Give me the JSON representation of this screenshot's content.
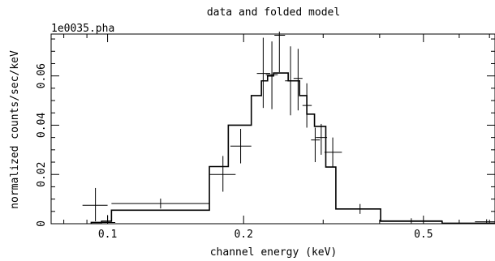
{
  "chart_data": {
    "type": "line",
    "title": "data and folded model",
    "subtitle": "1e0035.pha",
    "xlabel": "channel energy (keV)",
    "ylabel": "normalized counts/sec/keV",
    "xscale": "log",
    "xlim": [
      0.075,
      0.72
    ],
    "ylim": [
      0,
      0.077
    ],
    "xticks": [
      0.1,
      0.2,
      0.5
    ],
    "xtick_labels": [
      "0.1",
      "0.2",
      "0.5"
    ],
    "yticks": [
      0,
      0.02,
      0.04,
      0.06
    ],
    "ytick_labels": [
      "0",
      "0.02",
      "0.04",
      "0.06"
    ],
    "grid": false,
    "series": [
      {
        "kind": "data",
        "points": [
          {
            "x": 0.094,
            "xlo": 0.088,
            "xhi": 0.1,
            "y": 0.0075,
            "ylo": 0.001,
            "yhi": 0.0145
          },
          {
            "x": 0.1,
            "xlo": 0.097,
            "xhi": 0.104,
            "y": 0.0005,
            "ylo": 0.0,
            "yhi": 0.0035
          },
          {
            "x": 0.131,
            "xlo": 0.102,
            "xhi": 0.168,
            "y": 0.0082,
            "ylo": 0.0062,
            "yhi": 0.0102
          },
          {
            "x": 0.18,
            "xlo": 0.168,
            "xhi": 0.192,
            "y": 0.02,
            "ylo": 0.013,
            "yhi": 0.0275
          },
          {
            "x": 0.197,
            "xlo": 0.187,
            "xhi": 0.208,
            "y": 0.0315,
            "ylo": 0.0245,
            "yhi": 0.0385
          },
          {
            "x": 0.221,
            "xlo": 0.214,
            "xhi": 0.229,
            "y": 0.061,
            "ylo": 0.047,
            "yhi": 0.0755
          },
          {
            "x": 0.231,
            "xlo": 0.224,
            "xhi": 0.238,
            "y": 0.0605,
            "ylo": 0.0465,
            "yhi": 0.074
          },
          {
            "x": 0.24,
            "xlo": 0.234,
            "xhi": 0.247,
            "y": 0.0765,
            "ylo": 0.0615,
            "yhi": 0.078
          },
          {
            "x": 0.254,
            "xlo": 0.247,
            "xhi": 0.261,
            "y": 0.058,
            "ylo": 0.044,
            "yhi": 0.072
          },
          {
            "x": 0.264,
            "xlo": 0.258,
            "xhi": 0.27,
            "y": 0.059,
            "ylo": 0.046,
            "yhi": 0.071
          },
          {
            "x": 0.276,
            "xlo": 0.27,
            "xhi": 0.283,
            "y": 0.048,
            "ylo": 0.039,
            "yhi": 0.057
          },
          {
            "x": 0.288,
            "xlo": 0.282,
            "xhi": 0.295,
            "y": 0.034,
            "ylo": 0.025,
            "yhi": 0.039
          },
          {
            "x": 0.297,
            "xlo": 0.289,
            "xhi": 0.306,
            "y": 0.035,
            "ylo": 0.028,
            "yhi": 0.0405
          },
          {
            "x": 0.315,
            "xlo": 0.302,
            "xhi": 0.33,
            "y": 0.029,
            "ylo": 0.023,
            "yhi": 0.035
          },
          {
            "x": 0.362,
            "xlo": 0.337,
            "xhi": 0.392,
            "y": 0.006,
            "ylo": 0.004,
            "yhi": 0.008
          },
          {
            "x": 0.47,
            "xlo": 0.4,
            "xhi": 0.55,
            "y": 0.0012,
            "ylo": 0.0002,
            "yhi": 0.0022
          },
          {
            "x": 0.69,
            "xlo": 0.65,
            "xhi": 0.72,
            "y": 0.0008,
            "ylo": 0.0,
            "yhi": 0.0018
          }
        ]
      },
      {
        "kind": "model",
        "steps": [
          {
            "x0": 0.092,
            "x1": 0.097,
            "y": 0.0005
          },
          {
            "x0": 0.097,
            "x1": 0.102,
            "y": 0.001
          },
          {
            "x0": 0.102,
            "x1": 0.168,
            "y": 0.0055
          },
          {
            "x0": 0.168,
            "x1": 0.185,
            "y": 0.0232
          },
          {
            "x0": 0.185,
            "x1": 0.208,
            "y": 0.04
          },
          {
            "x0": 0.208,
            "x1": 0.219,
            "y": 0.052
          },
          {
            "x0": 0.219,
            "x1": 0.226,
            "y": 0.058
          },
          {
            "x0": 0.226,
            "x1": 0.233,
            "y": 0.06
          },
          {
            "x0": 0.233,
            "x1": 0.251,
            "y": 0.0612
          },
          {
            "x0": 0.251,
            "x1": 0.266,
            "y": 0.058
          },
          {
            "x0": 0.266,
            "x1": 0.276,
            "y": 0.052
          },
          {
            "x0": 0.276,
            "x1": 0.287,
            "y": 0.0445
          },
          {
            "x0": 0.287,
            "x1": 0.304,
            "y": 0.0395
          },
          {
            "x0": 0.304,
            "x1": 0.32,
            "y": 0.023
          },
          {
            "x0": 0.32,
            "x1": 0.402,
            "y": 0.006
          },
          {
            "x0": 0.402,
            "x1": 0.55,
            "y": 0.001
          },
          {
            "x0": 0.55,
            "x1": 0.72,
            "y": 0.0002
          }
        ]
      }
    ]
  }
}
